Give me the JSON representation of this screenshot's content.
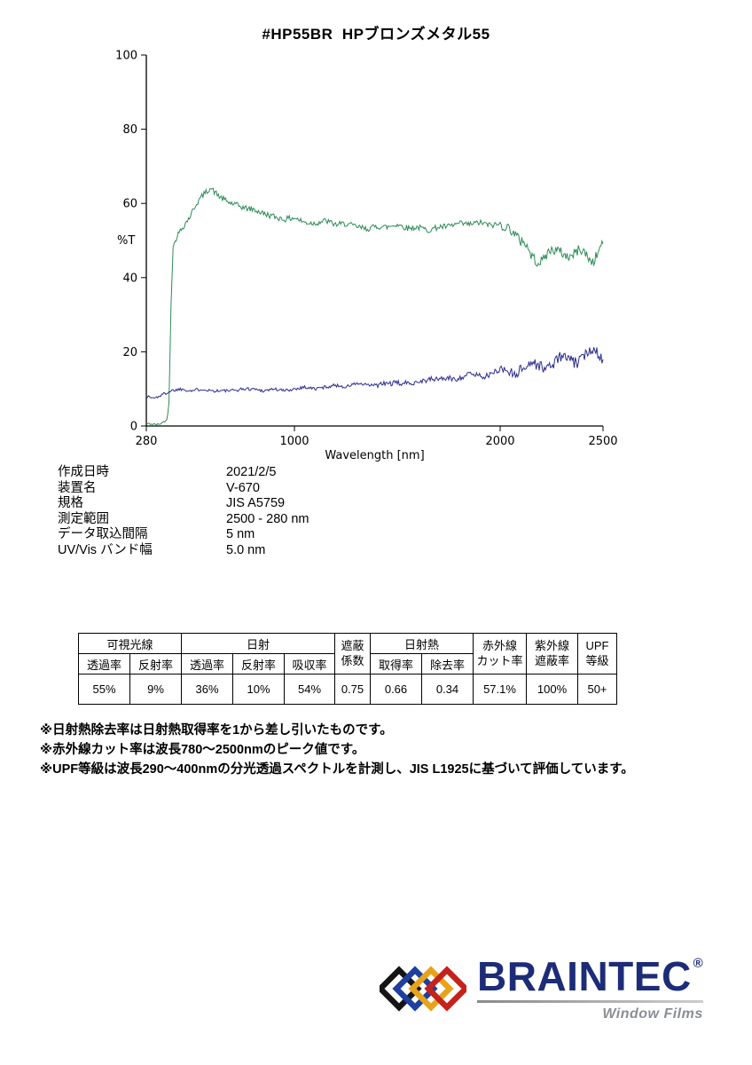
{
  "page": {
    "title": "#HP55BR  HPブロンズメタル55"
  },
  "chart_data": {
    "type": "line",
    "title": "#HP55BR HPブロンズメタル55",
    "xlabel": "Wavelength [nm]",
    "ylabel": "%T",
    "xlim": [
      280,
      2500
    ],
    "ylim": [
      0,
      100
    ],
    "xticks": [
      280,
      1000,
      2000,
      2500
    ],
    "yticks": [
      0,
      20,
      40,
      60,
      80,
      100
    ],
    "grid": false,
    "legend": "none",
    "sampling_interval_nm": 5,
    "series": [
      {
        "name": "spectral-transmittance",
        "color": "#2e8b57",
        "x": [
          280,
          340,
          380,
          390,
          400,
          410,
          430,
          460,
          490,
          520,
          550,
          575,
          590,
          610,
          640,
          680,
          720,
          760,
          800,
          850,
          900,
          950,
          1000,
          1050,
          1100,
          1150,
          1200,
          1250,
          1300,
          1350,
          1400,
          1450,
          1500,
          1550,
          1600,
          1650,
          1700,
          1750,
          1800,
          1850,
          1900,
          1950,
          2000,
          2050,
          2100,
          2150,
          2200,
          2250,
          2300,
          2350,
          2400,
          2450,
          2500
        ],
        "y": [
          1,
          0.5,
          1.5,
          6,
          32,
          48,
          51,
          53.5,
          56,
          59.5,
          62,
          63.5,
          64.5,
          63.5,
          62,
          60.5,
          59.5,
          58.5,
          58,
          57,
          56.5,
          56,
          56.5,
          55,
          54.5,
          55,
          54,
          54.5,
          54,
          53.5,
          54,
          53.5,
          54,
          53,
          53.5,
          53,
          54,
          54,
          54.5,
          54,
          54.5,
          54,
          54.5,
          53.5,
          50,
          46.5,
          44.5,
          46,
          47.5,
          46,
          47,
          45.5,
          49.5
        ]
      },
      {
        "name": "spectral-reflectance",
        "color": "#2b2b8f",
        "x": [
          280,
          320,
          360,
          400,
          450,
          500,
          550,
          600,
          650,
          700,
          750,
          800,
          850,
          900,
          950,
          1000,
          1050,
          1100,
          1150,
          1200,
          1250,
          1300,
          1350,
          1400,
          1450,
          1500,
          1550,
          1600,
          1650,
          1700,
          1750,
          1800,
          1850,
          1900,
          1950,
          2000,
          2050,
          2100,
          2150,
          2200,
          2250,
          2300,
          2350,
          2400,
          2450,
          2500
        ],
        "y": [
          8,
          7.5,
          8.5,
          9.5,
          10,
          9.5,
          10,
          9.5,
          9.5,
          9.5,
          10,
          10,
          9.5,
          10,
          9.5,
          10,
          10.5,
          10,
          10.5,
          11,
          10.5,
          11.5,
          11,
          11,
          11.5,
          11.5,
          11.5,
          12,
          12.5,
          12.5,
          13,
          13,
          13.5,
          14,
          14,
          14.5,
          15,
          15.5,
          16,
          16.5,
          17,
          17.5,
          18,
          19,
          19.5,
          18.5
        ]
      }
    ]
  },
  "measurement_info": {
    "rows": [
      {
        "label": "作成日時",
        "value": "2021/2/5"
      },
      {
        "label": "装置名",
        "value": "V-670"
      },
      {
        "label": "規格",
        "value": "JIS A5759"
      },
      {
        "label": "測定範囲",
        "value": "2500 - 280 nm"
      },
      {
        "label": "データ取込間隔",
        "value": "5 nm"
      },
      {
        "label": "UV/Vis バンド幅",
        "value": "5.0 nm"
      }
    ]
  },
  "results_table": {
    "group_headers": {
      "visible": "可視光線",
      "solar": "日射",
      "shading": "遮蔽\n係数",
      "solar_heat": "日射熱",
      "infrared": "赤外線\nカット率",
      "ultraviolet": "紫外線\n遮蔽率",
      "upf": "UPF\n等級"
    },
    "sub_headers": [
      "透過率",
      "反射率",
      "透過率",
      "反射率",
      "吸収率",
      "取得率",
      "除去率"
    ],
    "values": [
      "55%",
      "9%",
      "36%",
      "10%",
      "54%",
      "0.75",
      "0.66",
      "0.34",
      "57.1%",
      "100%",
      "50+"
    ]
  },
  "notes": [
    "※日射熱除去率は日射熱取得率を1から差し引いたものです。",
    "※赤外線カット率は波長780～2500nmのピーク値です。",
    "※UPF等級は波長290～400nmの分光透過スペクトルを計測し、JIS L1925に基づいて評価しています。"
  ],
  "logo": {
    "brand": "BRAINTEC",
    "reg": "®",
    "tagline": "Window Films"
  }
}
